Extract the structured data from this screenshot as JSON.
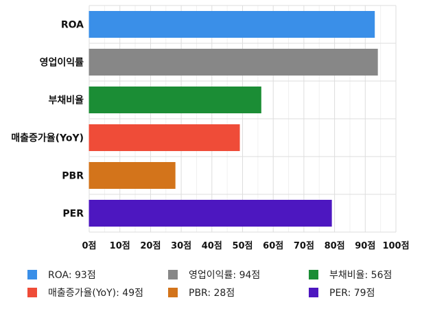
{
  "chart_data": {
    "type": "bar",
    "orientation": "horizontal",
    "categories": [
      "ROA",
      "영업이익률",
      "부채비율",
      "매출증가율(YoY)",
      "PBR",
      "PER"
    ],
    "values": [
      93,
      94,
      56,
      49,
      28,
      79
    ],
    "colors": [
      "#3a8fe8",
      "#878787",
      "#1b8d35",
      "#ef4c38",
      "#d3741b",
      "#4d17c0"
    ],
    "xlim": [
      0,
      100
    ],
    "x_ticks": [
      0,
      10,
      20,
      30,
      40,
      50,
      60,
      70,
      80,
      90,
      100
    ],
    "x_tick_labels": [
      "0점",
      "10점",
      "20점",
      "30점",
      "40점",
      "50점",
      "60점",
      "70점",
      "80점",
      "90점",
      "100점"
    ],
    "grid": true,
    "legend": {
      "placement": "bottom",
      "entries": [
        "ROA: 93점",
        "영업이익률: 94점",
        "부채비율: 56점",
        "매출증가율(YoY): 49점",
        "PBR: 28점",
        "PER: 79점"
      ]
    }
  }
}
